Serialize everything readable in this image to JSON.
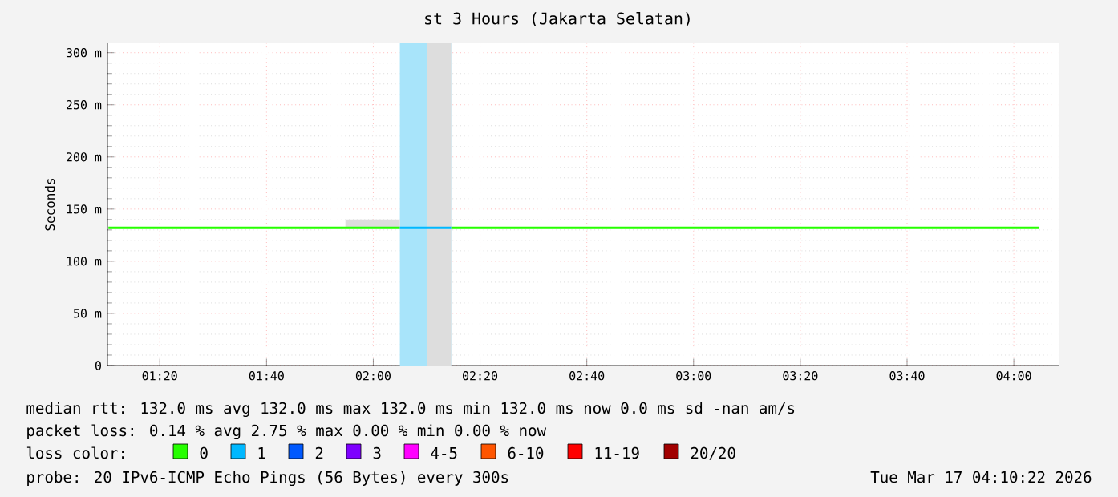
{
  "chart_data": {
    "type": "line",
    "title": "st 3 Hours (Jakarta Selatan)",
    "ylabel": "Seconds",
    "legend_title": "loss color:",
    "legend": "bottom",
    "grid": true,
    "xlim": [
      1.17,
      4.14
    ],
    "ylim": [
      0,
      309
    ],
    "xticks": [
      {
        "value": 1.3333,
        "label": "01:20"
      },
      {
        "value": 1.6667,
        "label": "01:40"
      },
      {
        "value": 2.0,
        "label": "02:00"
      },
      {
        "value": 2.3333,
        "label": "02:20"
      },
      {
        "value": 2.6667,
        "label": "02:40"
      },
      {
        "value": 3.0,
        "label": "03:00"
      },
      {
        "value": 3.3333,
        "label": "03:20"
      },
      {
        "value": 3.6667,
        "label": "03:40"
      },
      {
        "value": 4.0,
        "label": "04:00"
      }
    ],
    "yticks": [
      0,
      {
        "value": 50,
        "label": "50 m"
      },
      {
        "value": 100,
        "label": "100 m"
      },
      {
        "value": 150,
        "label": "150 m"
      },
      {
        "value": 200,
        "label": "200 m"
      },
      {
        "value": 250,
        "label": "250 m"
      },
      {
        "value": 300,
        "label": "300 m"
      }
    ],
    "bands": [
      {
        "axis": "x",
        "from": 2.083,
        "to": 2.243,
        "color": "#a8e4fa"
      },
      {
        "axis": "x",
        "from": 2.167,
        "to": 2.243,
        "color": "#dddddd"
      }
    ],
    "series": [
      {
        "name": "0",
        "color": "#26ff00",
        "x": [
          1.173,
          1.913,
          2.083,
          2.1,
          2.243,
          4.08
        ],
        "values": [
          132,
          132,
          132,
          null,
          132,
          132
        ],
        "lower": [
          null,
          132,
          132,
          null,
          null,
          null
        ],
        "upper": [
          null,
          140,
          140,
          null,
          null,
          null
        ]
      },
      {
        "name": "1",
        "color": "#00b8ff",
        "x": [
          2.083,
          2.243
        ],
        "values": [
          132,
          132
        ]
      },
      {
        "name": "2",
        "color": "#0059ff"
      },
      {
        "name": "3",
        "color": "#7e00ff"
      },
      {
        "name": "4-5",
        "color": "#ff00ff"
      },
      {
        "name": "6-10",
        "color": "#ff5500"
      },
      {
        "name": "11-19",
        "color": "#ff0000"
      },
      {
        "name": "20/20",
        "color": "#a10000"
      }
    ],
    "annotations": [
      "median rtt:  132.0 ms avg  132.0 ms max  132.0 ms min  132.0 ms now  0.0 ms sd  -nan   am/s",
      "packet loss: 0.14 % avg  2.75 % max  0.00 % min  0.00 % now",
      "probe:       20 IPv6-ICMP Echo Pings (56 Bytes) every 300s",
      "Tue Mar 17 04:10:22 2026"
    ]
  }
}
